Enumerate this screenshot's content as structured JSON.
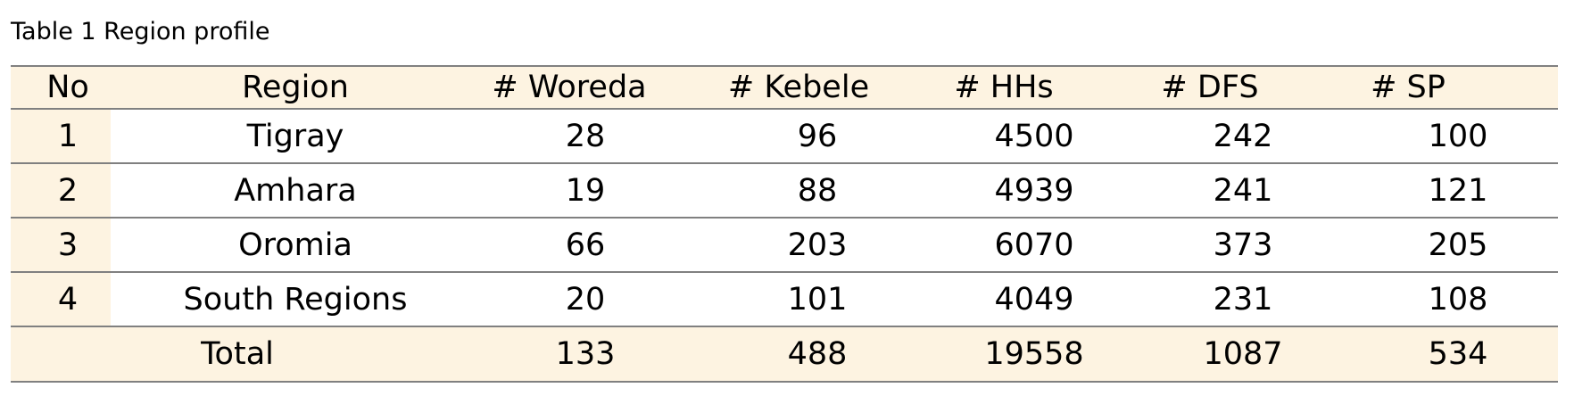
{
  "caption": "Table 1 Region profile",
  "table": {
    "headers": [
      "No",
      "Region",
      "# Woreda",
      "# Kebele",
      "# HHs",
      "# DFS",
      "# SP"
    ],
    "rows": [
      [
        "1",
        "Tigray",
        "28",
        "96",
        "4500",
        "242",
        "100"
      ],
      [
        "2",
        "Amhara",
        "19",
        "88",
        "4939",
        "241",
        "121"
      ],
      [
        "3",
        "Oromia",
        "66",
        "203",
        "6070",
        "373",
        "205"
      ],
      [
        "4",
        "South Regions",
        "20",
        "101",
        "4049",
        "231",
        "108"
      ]
    ],
    "total": [
      "",
      "Total",
      "133",
      "488",
      "19558",
      "1087",
      "534"
    ]
  },
  "colors": {
    "header_fill": "#fdf3e1",
    "rule": "#808080"
  }
}
